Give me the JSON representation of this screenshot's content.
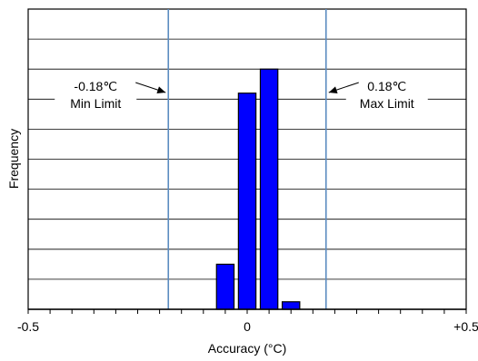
{
  "chart_data": {
    "type": "bar",
    "title": "",
    "xlabel": "Accuracy (°C)",
    "ylabel": "Frequency",
    "xlim": [
      -0.5,
      0.5
    ],
    "ylim": [
      0,
      10
    ],
    "x_tick_labels": [
      {
        "value": -0.5,
        "label": "-0.5"
      },
      {
        "value": 0,
        "label": "0"
      },
      {
        "value": 0.5,
        "label": "+0.5"
      }
    ],
    "x_minor_tick_step": 0.05,
    "grid_y_step": 1,
    "grid": true,
    "series": [
      {
        "x": [
          -0.05,
          0.0,
          0.05,
          0.1
        ],
        "values": [
          1.5,
          7.2,
          8.0,
          0.25
        ],
        "bar_width": 0.04,
        "color": "#0000ff"
      }
    ],
    "limit_lines": [
      {
        "x": -0.18,
        "value_label": "-0.18℃",
        "label": "Min Limit",
        "color": "#5b8cc0",
        "side": "left"
      },
      {
        "x": 0.18,
        "value_label": "0.18℃",
        "label": "Max Limit",
        "color": "#5b8cc0",
        "side": "right"
      }
    ]
  }
}
